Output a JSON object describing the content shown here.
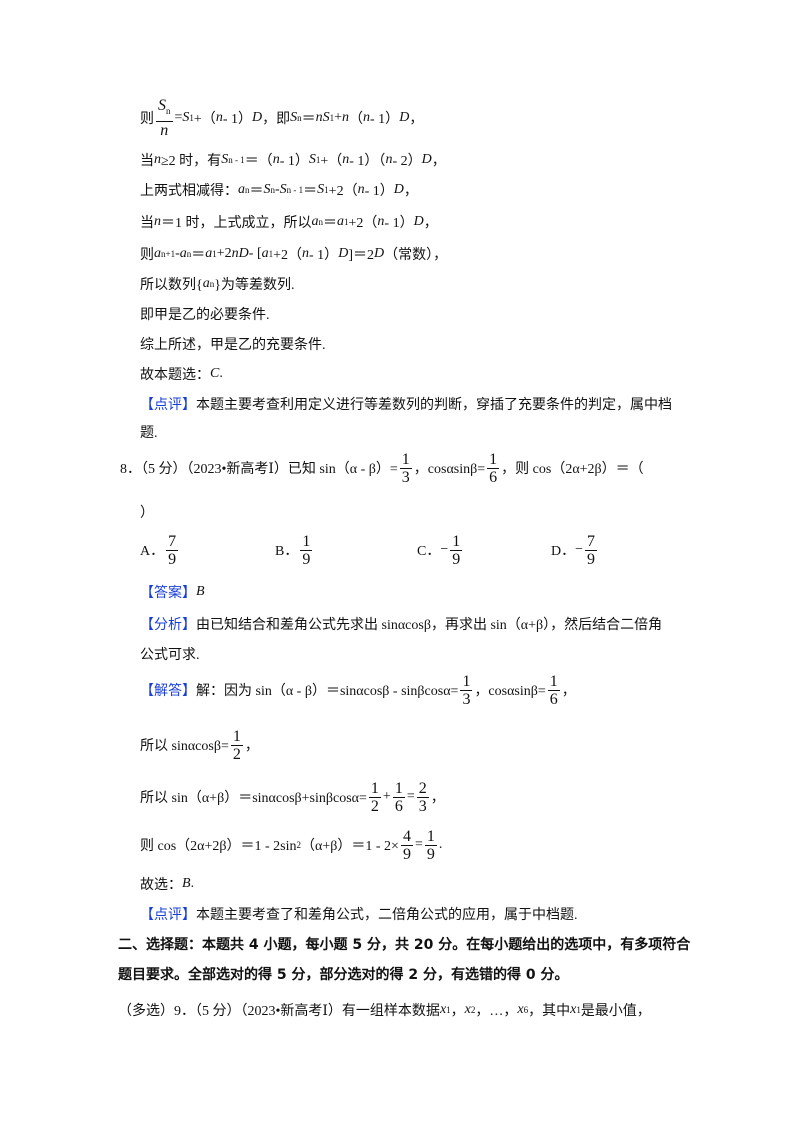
{
  "lines": [
    {
      "name": "derivation-line-1",
      "seg": [
        "则",
        {
          "frac": [
            [
              {
                "i": "S",
                "sub": "n"
              }
            ],
            [
              {
                "i": "n"
              }
            ]
          ]
        },
        "=",
        {
          "i": "S",
          "sub": "1"
        },
        "+（",
        {
          "i": "n"
        },
        " - 1）",
        {
          "i": "D"
        },
        "，即 ",
        {
          "i": "S",
          "sub": "n"
        },
        "＝",
        {
          "i": "n"
        },
        {
          "i": "S",
          "sub": "1"
        },
        "+",
        {
          "i": "n"
        },
        "（",
        {
          "i": "n"
        },
        " - 1）",
        {
          "i": "D"
        },
        "，"
      ]
    },
    {
      "name": "derivation-line-2",
      "seg": [
        "当 ",
        {
          "i": "n"
        },
        "≥2 时，有 ",
        {
          "i": "S",
          "sub": "n - 1"
        },
        "＝（",
        {
          "i": "n"
        },
        " - 1）",
        {
          "i": "S",
          "sub": "1"
        },
        "+（",
        {
          "i": "n"
        },
        " - 1）（",
        {
          "i": "n"
        },
        " - 2）",
        {
          "i": "D"
        },
        "，"
      ]
    },
    {
      "name": "derivation-line-3",
      "seg": [
        "上两式相减得：",
        {
          "i": "a",
          "sub": "n"
        },
        "＝",
        {
          "i": "S",
          "sub": "n"
        },
        " - ",
        {
          "i": "S",
          "sub": "n - 1"
        },
        "＝",
        {
          "i": "S",
          "sub": "1"
        },
        "+2（",
        {
          "i": "n"
        },
        " - 1）",
        {
          "i": "D"
        },
        "，"
      ]
    },
    {
      "name": "derivation-line-4",
      "seg": [
        "当 ",
        {
          "i": "n"
        },
        "＝1 时，上式成立，所以 ",
        {
          "i": "a",
          "sub": "n"
        },
        "＝",
        {
          "i": "a",
          "sub": "1"
        },
        "+2（",
        {
          "i": "n"
        },
        " - 1）",
        {
          "i": "D"
        },
        "，"
      ]
    },
    {
      "name": "derivation-line-5",
      "seg": [
        "则 ",
        {
          "i": "a",
          "sub": "n+1"
        },
        " - ",
        {
          "i": "a",
          "sub": "n"
        },
        "＝",
        {
          "i": "a",
          "sub": "1"
        },
        "+2",
        {
          "i": "nD"
        },
        " - [",
        {
          "i": "a",
          "sub": "1"
        },
        "+2（",
        {
          "i": "n"
        },
        " - 1）",
        {
          "i": "D"
        },
        "]＝2",
        {
          "i": "D"
        },
        "（常数），"
      ]
    },
    {
      "name": "derivation-line-6",
      "seg": [
        "所以数列{",
        {
          "i": "a",
          "sub": "n"
        },
        "}为等差数列."
      ]
    },
    {
      "name": "conclusion-line-1",
      "seg": [
        "即甲是乙的必要条件."
      ]
    },
    {
      "name": "conclusion-line-2",
      "seg": [
        "综上所述，甲是乙的充要条件."
      ]
    },
    {
      "name": "choice-line-q7",
      "seg": [
        "故本题选：",
        {
          "i": "C"
        },
        "."
      ]
    },
    {
      "name": "comment-q7",
      "seg": [
        {
          "tag": "【点评】"
        },
        "本题主要考查利用定义进行等差数列的判断，穿插了充要条件的判定，属中档"
      ]
    },
    {
      "name": "comment-q7-cont",
      "seg": [
        "题."
      ]
    },
    {
      "name": "question-8",
      "seg": [
        "8．（5 分）（2023•新高考Ⅰ）已知 sin（α - β）=",
        {
          "frac": [
            [
              "1"
            ],
            [
              "3"
            ]
          ]
        },
        "，cosαsinβ=",
        {
          "frac": [
            [
              "1"
            ],
            [
              "6"
            ]
          ]
        },
        "，则 cos（2α+2β）＝（"
      ]
    },
    {
      "name": "question-8-cont",
      "seg": [
        "）"
      ]
    },
    {
      "name": "answer-q8",
      "seg": [
        {
          "tag": "【答案】"
        },
        {
          "i": "B"
        }
      ]
    },
    {
      "name": "analysis-q8",
      "seg": [
        {
          "tag": "【分析】"
        },
        "由已知结合和差角公式先求出 sinαcosβ，再求出 sin（α+β），然后结合二倍角"
      ]
    },
    {
      "name": "analysis-q8-cont",
      "seg": [
        "公式可求."
      ]
    },
    {
      "name": "solution-q8-line-1",
      "seg": [
        {
          "tag": "【解答】"
        },
        "解：因为 sin（α - β）＝sinαcosβ - sinβcosα=",
        {
          "frac": [
            [
              "1"
            ],
            [
              "3"
            ]
          ]
        },
        "，cosαsinβ=",
        {
          "frac": [
            [
              "1"
            ],
            [
              "6"
            ]
          ]
        },
        "，"
      ]
    },
    {
      "name": "solution-q8-line-2",
      "seg": [
        "所以 sinαcosβ=",
        {
          "frac": [
            [
              "1"
            ],
            [
              "2"
            ]
          ]
        },
        "，"
      ]
    },
    {
      "name": "solution-q8-line-3",
      "seg": [
        "所以 sin（α+β）＝sinαcosβ+sinβcosα=",
        {
          "frac": [
            [
              "1"
            ],
            [
              "2"
            ]
          ]
        },
        "+",
        {
          "frac": [
            [
              "1"
            ],
            [
              "6"
            ]
          ]
        },
        "=",
        {
          "frac": [
            [
              "2"
            ],
            [
              "3"
            ]
          ]
        },
        "，"
      ]
    },
    {
      "name": "solution-q8-line-4",
      "seg": [
        "则 cos（2α+2β）＝1 - 2sin",
        {
          "sup": "2"
        },
        "（α+β）＝1 - 2×",
        {
          "frac": [
            [
              "4"
            ],
            [
              "9"
            ]
          ]
        },
        "=",
        {
          "frac": [
            [
              "1"
            ],
            [
              "9"
            ]
          ]
        },
        "."
      ]
    },
    {
      "name": "choice-line-q8",
      "seg": [
        "故选：",
        {
          "i": "B"
        },
        "."
      ]
    },
    {
      "name": "comment-q8",
      "seg": [
        {
          "tag": "【点评】"
        },
        "本题主要考查了和差角公式，二倍角公式的应用，属于中档题."
      ]
    },
    {
      "name": "section-2-heading",
      "bold": true,
      "seg": [
        "二、选择题：本题共 4 小题，每小题 5 分，共 20 分。在每小题给出的选项中，有多项符合"
      ]
    },
    {
      "name": "section-2-heading-cont",
      "bold": true,
      "seg": [
        "题目要求。全部选对的得 5 分，部分选对的得 2 分，有选错的得 0 分。"
      ]
    },
    {
      "name": "question-9",
      "seg": [
        "（多选）9．（5 分）（2023•新高考Ⅰ）有一组样本数据 ",
        {
          "i": "x",
          "sub": "1"
        },
        "，",
        {
          "i": "x",
          "sub": "2"
        },
        "，…，",
        {
          "i": "x",
          "sub": "6"
        },
        "，其中 ",
        {
          "i": "x",
          "sub": "1"
        },
        " 是最小值，"
      ]
    }
  ],
  "options_q8": [
    {
      "label": "A．",
      "neg": "",
      "num": "7",
      "den": "9"
    },
    {
      "label": "B．",
      "neg": "",
      "num": "1",
      "den": "9"
    },
    {
      "label": "C．",
      "neg": "−",
      "num": "1",
      "den": "9"
    },
    {
      "label": "D．",
      "neg": "−",
      "num": "7",
      "den": "9"
    }
  ],
  "colors": {
    "tag": "#1a3fd6",
    "text": "#111111"
  }
}
